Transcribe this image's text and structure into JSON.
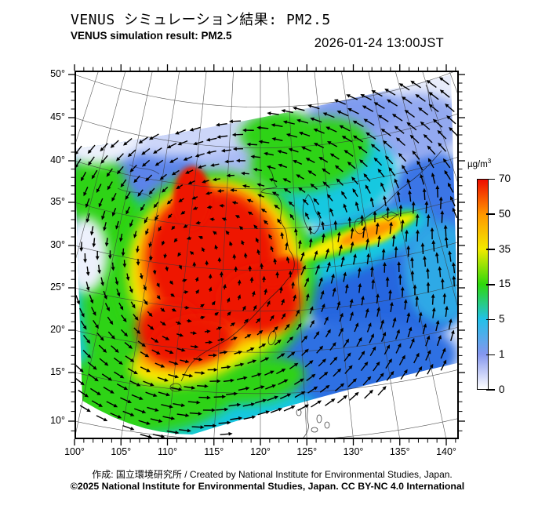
{
  "header": {
    "title_ja": "VENUS シミュレーション結果: PM2.5",
    "title_en": "VENUS simulation result: PM2.5",
    "datetime": "2026-01-24 13:00JST"
  },
  "map": {
    "x_axis": {
      "tick_labels": [
        "100°",
        "105°",
        "110°",
        "115°",
        "120°",
        "125°",
        "130°",
        "135°",
        "140°"
      ]
    },
    "y_axis": {
      "tick_labels": [
        "50°",
        "45°",
        "40°",
        "35°",
        "30°",
        "25°",
        "20°",
        "15°",
        "10°"
      ]
    }
  },
  "colorbar": {
    "unit_base": "µg/m",
    "unit_exp": "3",
    "tick_labels": [
      "70",
      "50",
      "35",
      "15",
      "5",
      "1",
      "0"
    ],
    "gradient_colors": [
      "#ffffff",
      "#8496ee",
      "#22c0e8",
      "#2ed80c",
      "#f2ea00",
      "#ff9800",
      "#ee0d00"
    ]
  },
  "footer": {
    "credit_line": "作成: 国立環境研究所 / Created by National Institute for Environmental Studies, Japan.",
    "license_line": "©2025 National Institute for Environmental Studies, Japan. CC BY-NC 4.0 International"
  },
  "chart_data": {
    "type": "heatmap",
    "model": "VENUS",
    "variable": "PM2.5 surface concentration",
    "unit": "µg/m³",
    "datetime": "2026-01-24 13:00JST",
    "lon_range_deg": [
      100,
      140
    ],
    "lat_range_deg": [
      10,
      50
    ],
    "lon_ticks": [
      100,
      105,
      110,
      115,
      120,
      125,
      130,
      135,
      140
    ],
    "lat_ticks": [
      10,
      15,
      20,
      25,
      30,
      35,
      40,
      45,
      50
    ],
    "scale_levels": [
      0,
      1,
      5,
      15,
      35,
      50,
      70
    ],
    "scale_colors": [
      "#ffffff",
      "#8496ee",
      "#22c0e8",
      "#2ed80c",
      "#f2ea00",
      "#ff9800",
      "#ee0d00"
    ],
    "overlay": "wind vector arrows on tilted model domain",
    "features": [
      {
        "level": "> 70 µg/m³ (red)",
        "area": "eastern/central China, approx 105–122E, 20–35N, with southern lobe near 108–115E, 20–24N"
      },
      {
        "level": "35–70 µg/m³ (yellow–orange)",
        "area": "plume band extending northeast across East China Sea toward western Japan (~125–133E, 28–34N)"
      },
      {
        "level": "5–35 µg/m³ (green–cyan)",
        "area": "northeast China, Korea, Indochina and margins of the main plume"
      },
      {
        "level": "0–5 µg/m³ (blue–white)",
        "area": "oceans east and southeast of domain, Mongolia/Siberia band in the north"
      }
    ]
  }
}
